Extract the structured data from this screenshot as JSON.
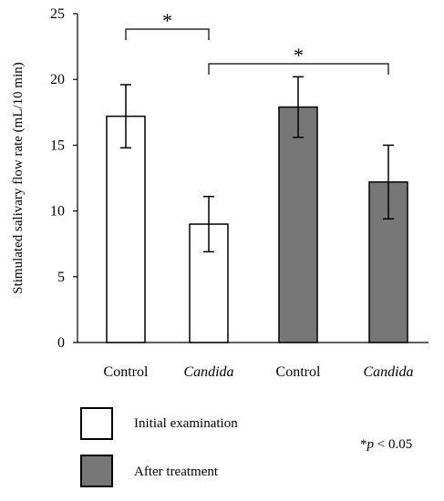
{
  "chart_data": {
    "type": "bar",
    "ylabel": "Stimulated salivary flow rate (mL/10 min)",
    "ylim": [
      0,
      25
    ],
    "yticks": [
      0,
      5,
      10,
      15,
      20,
      25
    ],
    "categories": [
      "Control",
      "Candida",
      "Control",
      "Candida"
    ],
    "category_italic": [
      false,
      true,
      false,
      true
    ],
    "bars": [
      {
        "category": "Control",
        "series": "Initial examination",
        "value": 17.2,
        "error": 2.4
      },
      {
        "category": "Candida",
        "series": "Initial examination",
        "value": 9.0,
        "error": 2.1
      },
      {
        "category": "Control",
        "series": "After treatment",
        "value": 17.9,
        "error": 2.3
      },
      {
        "category": "Candida",
        "series": "After treatment",
        "value": 12.2,
        "error": 2.8
      }
    ],
    "series": [
      {
        "name": "Initial examination",
        "color": "#ffffff"
      },
      {
        "name": "After treatment",
        "color": "#777777"
      }
    ],
    "significance": [
      {
        "from": 0,
        "to": 1,
        "label": "*"
      },
      {
        "from": 1,
        "to": 3,
        "label": "*"
      }
    ],
    "legend_position": "bottom-left",
    "note": {
      "prefix": "*",
      "italic": "p",
      "suffix": " < 0.05"
    },
    "grid": false
  }
}
